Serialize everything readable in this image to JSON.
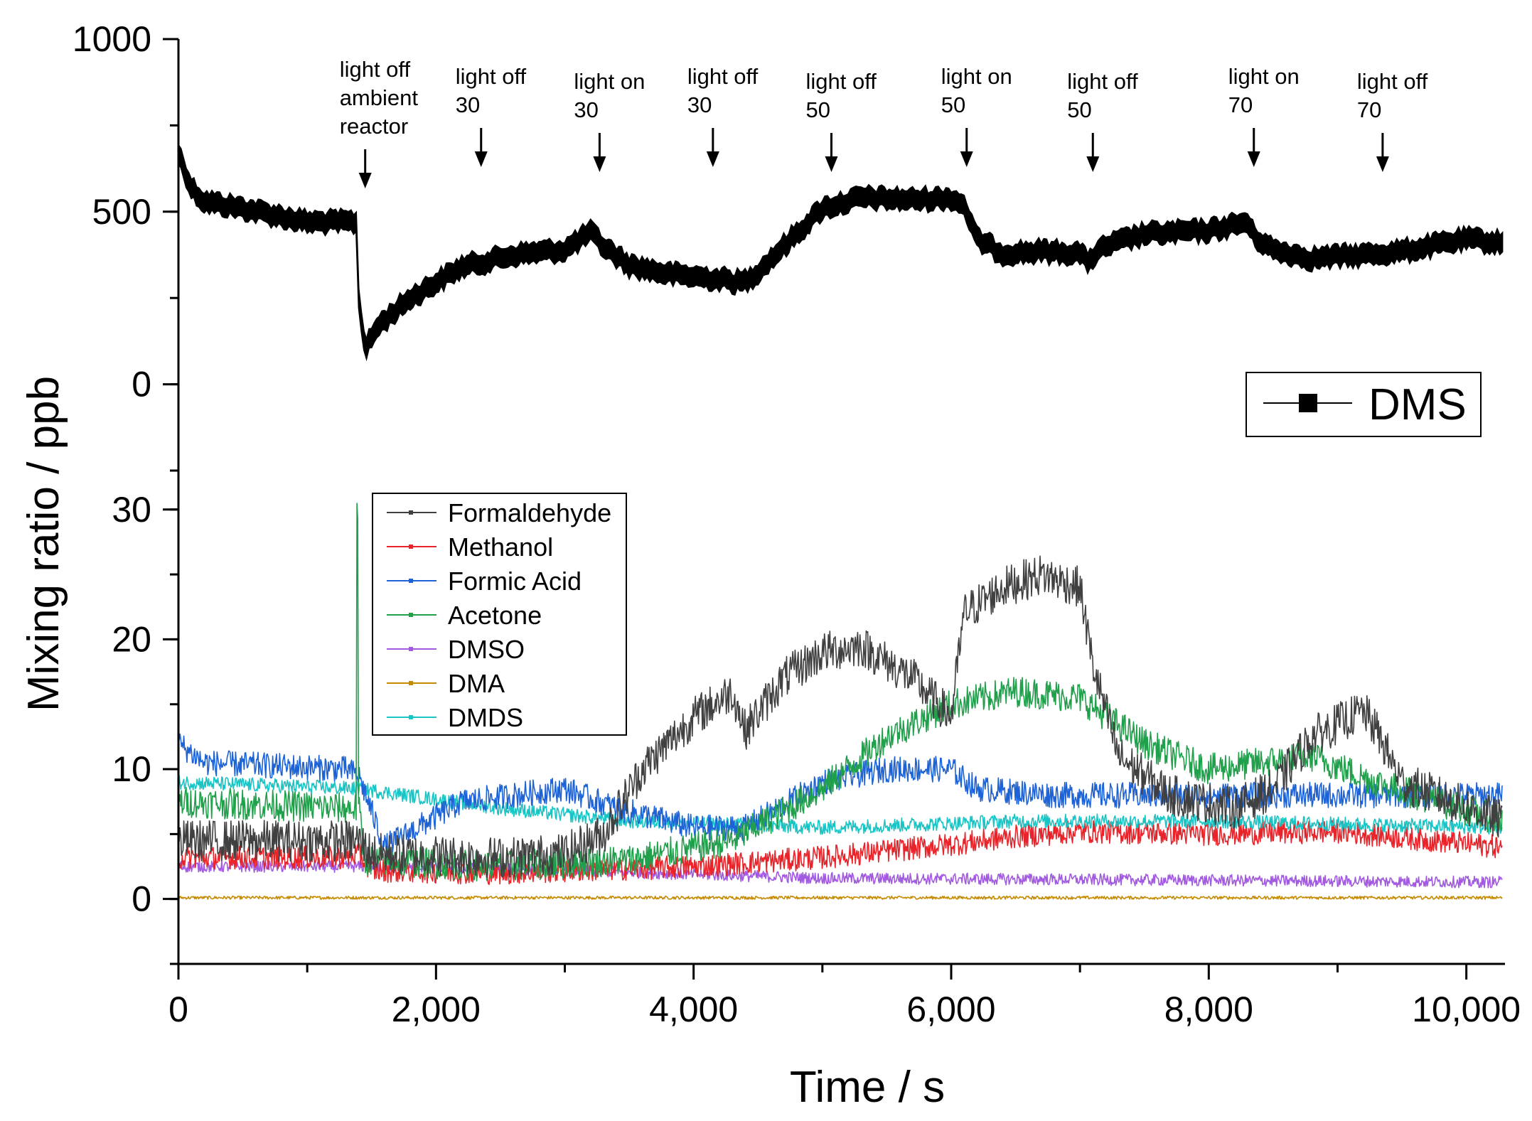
{
  "chart_data": [
    {
      "type": "line",
      "panel": "top",
      "ylabel": "Mixing ratio / ppb",
      "xlabel": "Time / s",
      "xlim": [
        0,
        10300
      ],
      "ylim": [
        -250,
        1000
      ],
      "yticks": [
        0,
        500,
        1000
      ],
      "ytick_labels": [
        "0",
        "500",
        "1000"
      ],
      "xticks": [
        0,
        2000,
        4000,
        6000,
        8000,
        10000
      ],
      "xtick_labels": [
        "0",
        "2,000",
        "4,000",
        "6,000",
        "8,000",
        "10,000"
      ],
      "legend": {
        "position": "bottom-right",
        "entries": [
          "DMS"
        ]
      },
      "series": [
        {
          "name": "DMS",
          "color": "#000000",
          "band_width": 55,
          "x": [
            0,
            100,
            200,
            500,
            1000,
            1380,
            1400,
            1450,
            1550,
            1800,
            2200,
            2600,
            3000,
            3200,
            3300,
            3500,
            3800,
            4200,
            4380,
            4450,
            4700,
            5000,
            5300,
            5700,
            6000,
            6100,
            6200,
            6400,
            6700,
            7000,
            7050,
            7200,
            7500,
            8000,
            8300,
            8350,
            8500,
            8800,
            9200,
            9500,
            10000,
            10280
          ],
          "values": [
            670,
            570,
            530,
            510,
            470,
            470,
            250,
            100,
            170,
            250,
            340,
            375,
            390,
            440,
            400,
            345,
            320,
            305,
            295,
            310,
            400,
            510,
            540,
            535,
            540,
            520,
            420,
            380,
            385,
            380,
            355,
            400,
            435,
            445,
            470,
            430,
            390,
            365,
            375,
            385,
            420,
            410
          ]
        }
      ],
      "annotations": [
        {
          "x": 1450,
          "lines": [
            "light off",
            "ambient",
            "reactor"
          ]
        },
        {
          "x": 2350,
          "lines": [
            "light off",
            "30"
          ]
        },
        {
          "x": 3270,
          "lines": [
            "light on",
            "30"
          ]
        },
        {
          "x": 4150,
          "lines": [
            "light off",
            "30"
          ]
        },
        {
          "x": 5070,
          "lines": [
            "light off",
            "50"
          ]
        },
        {
          "x": 6120,
          "lines": [
            "light on",
            "50"
          ]
        },
        {
          "x": 7100,
          "lines": [
            "light off",
            "50"
          ]
        },
        {
          "x": 8350,
          "lines": [
            "light on",
            "70"
          ]
        },
        {
          "x": 9350,
          "lines": [
            "light off",
            "70"
          ]
        }
      ]
    },
    {
      "type": "line",
      "panel": "bottom",
      "ylabel": "Mixing ratio / ppb",
      "xlabel": "Time / s",
      "xlim": [
        0,
        10300
      ],
      "ylim": [
        -5,
        33
      ],
      "yticks": [
        0,
        10,
        20,
        30
      ],
      "ytick_labels": [
        "0",
        "10",
        "20",
        "30"
      ],
      "xticks": [
        0,
        2000,
        4000,
        6000,
        8000,
        10000
      ],
      "xtick_labels": [
        "0",
        "2,000",
        "4,000",
        "6,000",
        "8,000",
        "10,000"
      ],
      "legend": {
        "position": "top-left",
        "entries": [
          "Formaldehyde",
          "Methanol",
          "Formic Acid",
          "Acetone",
          "DMSO",
          "DMA",
          "DMDS"
        ]
      },
      "series": [
        {
          "name": "Formaldehyde",
          "color": "#404040",
          "noise": 1.6,
          "marker": "square",
          "x": [
            0,
            1000,
            1400,
            1500,
            2500,
            3000,
            3300,
            3600,
            4000,
            4300,
            4400,
            4700,
            5000,
            5300,
            5700,
            6000,
            6100,
            6400,
            6700,
            7000,
            7100,
            7300,
            7700,
            8200,
            8500,
            8800,
            9200,
            9300,
            9500,
            10280
          ],
          "values": [
            4.5,
            4.5,
            4.5,
            3.5,
            3.2,
            3.5,
            5,
            10,
            14,
            16,
            13,
            17,
            19,
            19.5,
            17,
            14,
            22,
            24,
            25,
            24,
            18,
            11,
            8,
            7,
            8.5,
            12.5,
            14.5,
            13,
            9,
            6
          ]
        },
        {
          "name": "Methanol",
          "color": "#e8242a",
          "noise": 0.9,
          "marker": "circle",
          "x": [
            0,
            1300,
            1400,
            1500,
            2500,
            4000,
            5000,
            6000,
            6500,
            7000,
            8000,
            9000,
            10280
          ],
          "values": [
            3.2,
            3.2,
            3.5,
            2.2,
            2,
            2.5,
            3.2,
            4.2,
            4.8,
            5.2,
            5,
            5.2,
            4
          ]
        },
        {
          "name": "Formic Acid",
          "color": "#1e63d6",
          "noise": 1.0,
          "marker": "triangle",
          "x": [
            0,
            200,
            1300,
            1400,
            1600,
            2200,
            3000,
            3400,
            4000,
            4400,
            5000,
            5500,
            6000,
            6200,
            6800,
            7500,
            8500,
            9300,
            10280
          ],
          "values": [
            12,
            10.5,
            10,
            9.5,
            4,
            7.5,
            8.5,
            7,
            5.5,
            5.5,
            9,
            10,
            10,
            8.5,
            8,
            8,
            8,
            8,
            8
          ]
        },
        {
          "name": "Acetone",
          "color": "#21a04c",
          "noise": 1.2,
          "marker": "triangle-down",
          "x": [
            0,
            1300,
            1400,
            1450,
            2500,
            3500,
            4300,
            5000,
            5500,
            6000,
            6500,
            7000,
            7500,
            8000,
            8800,
            9300,
            10280
          ],
          "values": [
            7.5,
            7,
            7,
            3,
            2.5,
            3,
            4.5,
            8.5,
            12.5,
            15,
            16,
            15.5,
            12,
            10,
            11,
            9,
            6
          ],
          "spike": {
            "x": 1390,
            "value": 30
          }
        },
        {
          "name": "DMSO",
          "color": "#a25ae0",
          "noise": 0.45,
          "marker": "diamond",
          "x": [
            0,
            1500,
            3000,
            5000,
            7000,
            10280
          ],
          "values": [
            2.5,
            2.5,
            2.2,
            1.6,
            1.5,
            1.3
          ]
        },
        {
          "name": "DMA",
          "color": "#c68a00",
          "noise": 0.12,
          "marker": "pentagon",
          "x": [
            0,
            10280
          ],
          "values": [
            0.1,
            0.1
          ]
        },
        {
          "name": "DMDS",
          "color": "#19c4c4",
          "noise": 0.55,
          "marker": "triangle-right",
          "x": [
            0,
            1400,
            2500,
            3500,
            5000,
            6500,
            8000,
            10280
          ],
          "values": [
            9,
            8.5,
            7,
            6,
            5.5,
            6,
            6,
            5.5
          ]
        }
      ]
    }
  ]
}
